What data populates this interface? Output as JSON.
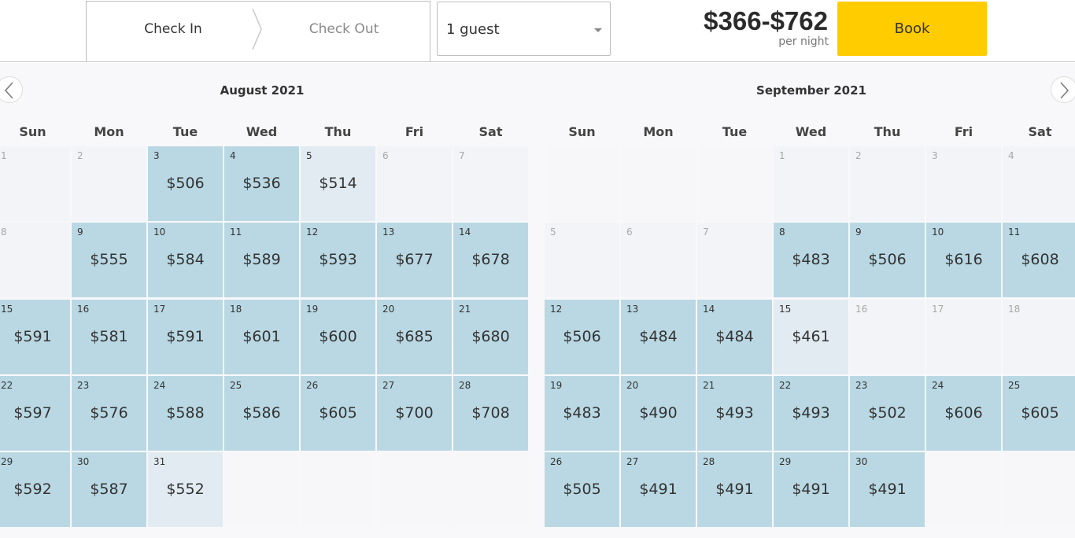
{
  "header": {
    "check_in": "Check In",
    "check_out": "Check Out",
    "guests": "1 guest",
    "price_range": "$366-$762",
    "per_night": "per night",
    "book": "Book"
  },
  "weekdays": [
    "Sun",
    "Mon",
    "Tue",
    "Wed",
    "Thu",
    "Fri",
    "Sat"
  ],
  "months": [
    {
      "title": "August 2021",
      "rows": [
        [
          {
            "d": "1"
          },
          {
            "d": "2"
          },
          {
            "d": "3",
            "p": "$506"
          },
          {
            "d": "4",
            "p": "$536"
          },
          {
            "d": "5",
            "p": "$514",
            "s": "light"
          },
          {
            "d": "6"
          },
          {
            "d": "7"
          }
        ],
        [
          {
            "d": "8"
          },
          {
            "d": "9",
            "p": "$555"
          },
          {
            "d": "10",
            "p": "$584"
          },
          {
            "d": "11",
            "p": "$589"
          },
          {
            "d": "12",
            "p": "$593"
          },
          {
            "d": "13",
            "p": "$677"
          },
          {
            "d": "14",
            "p": "$678"
          }
        ],
        [
          {
            "d": "15",
            "p": "$591"
          },
          {
            "d": "16",
            "p": "$581"
          },
          {
            "d": "17",
            "p": "$591"
          },
          {
            "d": "18",
            "p": "$601"
          },
          {
            "d": "19",
            "p": "$600"
          },
          {
            "d": "20",
            "p": "$685"
          },
          {
            "d": "21",
            "p": "$680"
          }
        ],
        [
          {
            "d": "22",
            "p": "$597"
          },
          {
            "d": "23",
            "p": "$576"
          },
          {
            "d": "24",
            "p": "$588"
          },
          {
            "d": "25",
            "p": "$586"
          },
          {
            "d": "26",
            "p": "$605"
          },
          {
            "d": "27",
            "p": "$700"
          },
          {
            "d": "28",
            "p": "$708"
          }
        ],
        [
          {
            "d": "29",
            "p": "$592"
          },
          {
            "d": "30",
            "p": "$587"
          },
          {
            "d": "31",
            "p": "$552",
            "s": "light"
          },
          {
            "d": ""
          },
          {
            "d": ""
          },
          {
            "d": ""
          },
          {
            "d": ""
          }
        ]
      ]
    },
    {
      "title": "September 2021",
      "rows": [
        [
          {
            "d": ""
          },
          {
            "d": ""
          },
          {
            "d": ""
          },
          {
            "d": "1"
          },
          {
            "d": "2"
          },
          {
            "d": "3"
          },
          {
            "d": "4"
          }
        ],
        [
          {
            "d": "5"
          },
          {
            "d": "6"
          },
          {
            "d": "7"
          },
          {
            "d": "8",
            "p": "$483"
          },
          {
            "d": "9",
            "p": "$506"
          },
          {
            "d": "10",
            "p": "$616"
          },
          {
            "d": "11",
            "p": "$608"
          }
        ],
        [
          {
            "d": "12",
            "p": "$506"
          },
          {
            "d": "13",
            "p": "$484"
          },
          {
            "d": "14",
            "p": "$484"
          },
          {
            "d": "15",
            "p": "$461",
            "s": "light"
          },
          {
            "d": "16"
          },
          {
            "d": "17"
          },
          {
            "d": "18"
          }
        ],
        [
          {
            "d": "19",
            "p": "$483"
          },
          {
            "d": "20",
            "p": "$490"
          },
          {
            "d": "21",
            "p": "$493"
          },
          {
            "d": "22",
            "p": "$493"
          },
          {
            "d": "23",
            "p": "$502"
          },
          {
            "d": "24",
            "p": "$606"
          },
          {
            "d": "25",
            "p": "$605"
          }
        ],
        [
          {
            "d": "26",
            "p": "$505"
          },
          {
            "d": "27",
            "p": "$491"
          },
          {
            "d": "28",
            "p": "$491"
          },
          {
            "d": "29",
            "p": "$491"
          },
          {
            "d": "30",
            "p": "$491"
          },
          {
            "d": ""
          },
          {
            "d": ""
          }
        ]
      ]
    }
  ]
}
